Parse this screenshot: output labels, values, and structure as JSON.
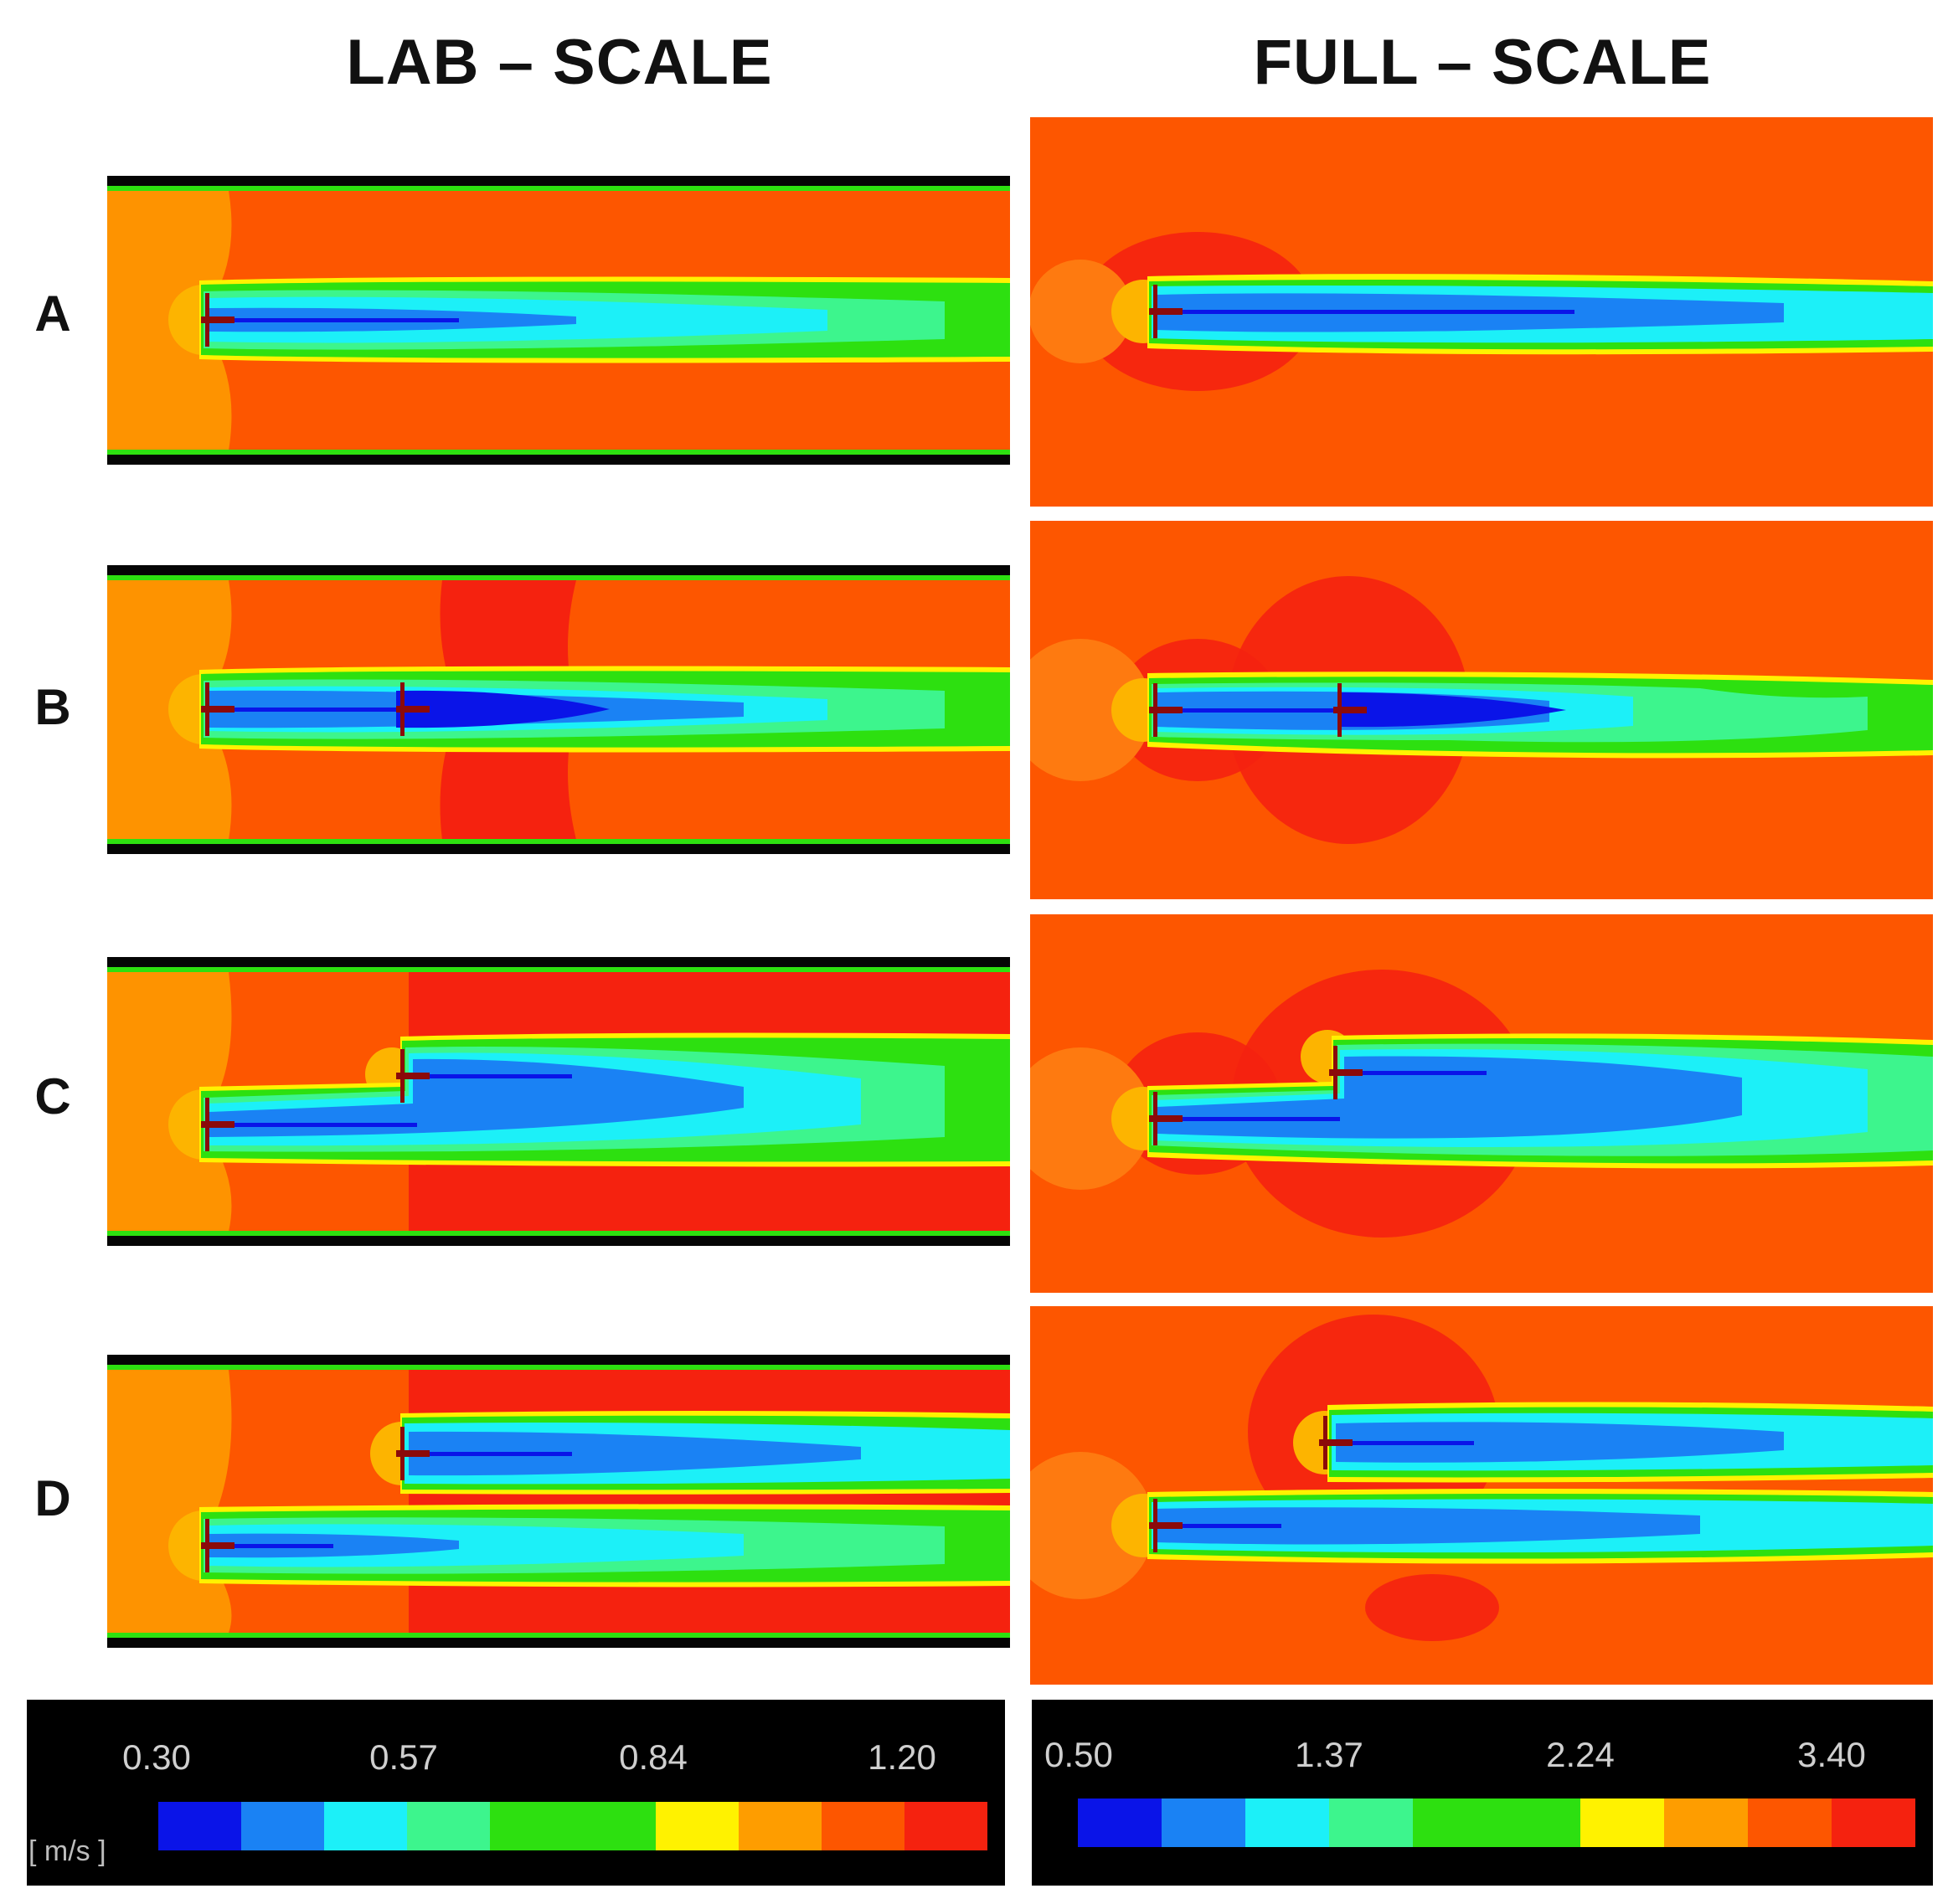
{
  "titles": {
    "lab": "LAB – SCALE",
    "full": "FULL – SCALE"
  },
  "rows": [
    "A",
    "B",
    "C",
    "D"
  ],
  "colors": {
    "red": "#f5220f",
    "orange": "#fd5600",
    "amber": "#fe9d00",
    "yellow": "#fff200",
    "green": "#2de010",
    "lightgreen": "#3df58d",
    "cyan": "#1cf0f8",
    "lightblue": "#1a82f4",
    "blue": "#0a14e8",
    "wall": "#050505"
  },
  "legend_lab": {
    "ticks": [
      "0.30",
      "0.57",
      "0.84",
      "1.20"
    ],
    "units": "[ m/s ]",
    "colors": [
      "#0a14e8",
      "#1a82f4",
      "#1cf0f8",
      "#3df58d",
      "#2de010",
      "#2de010",
      "#fff200",
      "#fe9d00",
      "#fd5600",
      "#f5220f"
    ]
  },
  "legend_full": {
    "ticks": [
      "0.50",
      "1.37",
      "2.24",
      "3.40"
    ],
    "colors": [
      "#0a14e8",
      "#1a82f4",
      "#1cf0f8",
      "#3df58d",
      "#2de010",
      "#2de010",
      "#fff200",
      "#fe9d00",
      "#fd5600",
      "#f5220f"
    ]
  }
}
